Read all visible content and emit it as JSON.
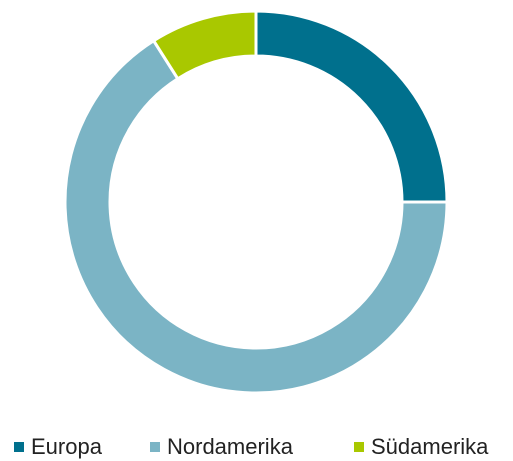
{
  "chart_data": {
    "type": "donut",
    "categories": [
      "Europa",
      "Nordamerika",
      "Südamerika"
    ],
    "values": [
      25,
      66,
      9
    ],
    "colors": [
      "#00708d",
      "#7bb4c5",
      "#a9c800"
    ],
    "legend": "bottom"
  }
}
